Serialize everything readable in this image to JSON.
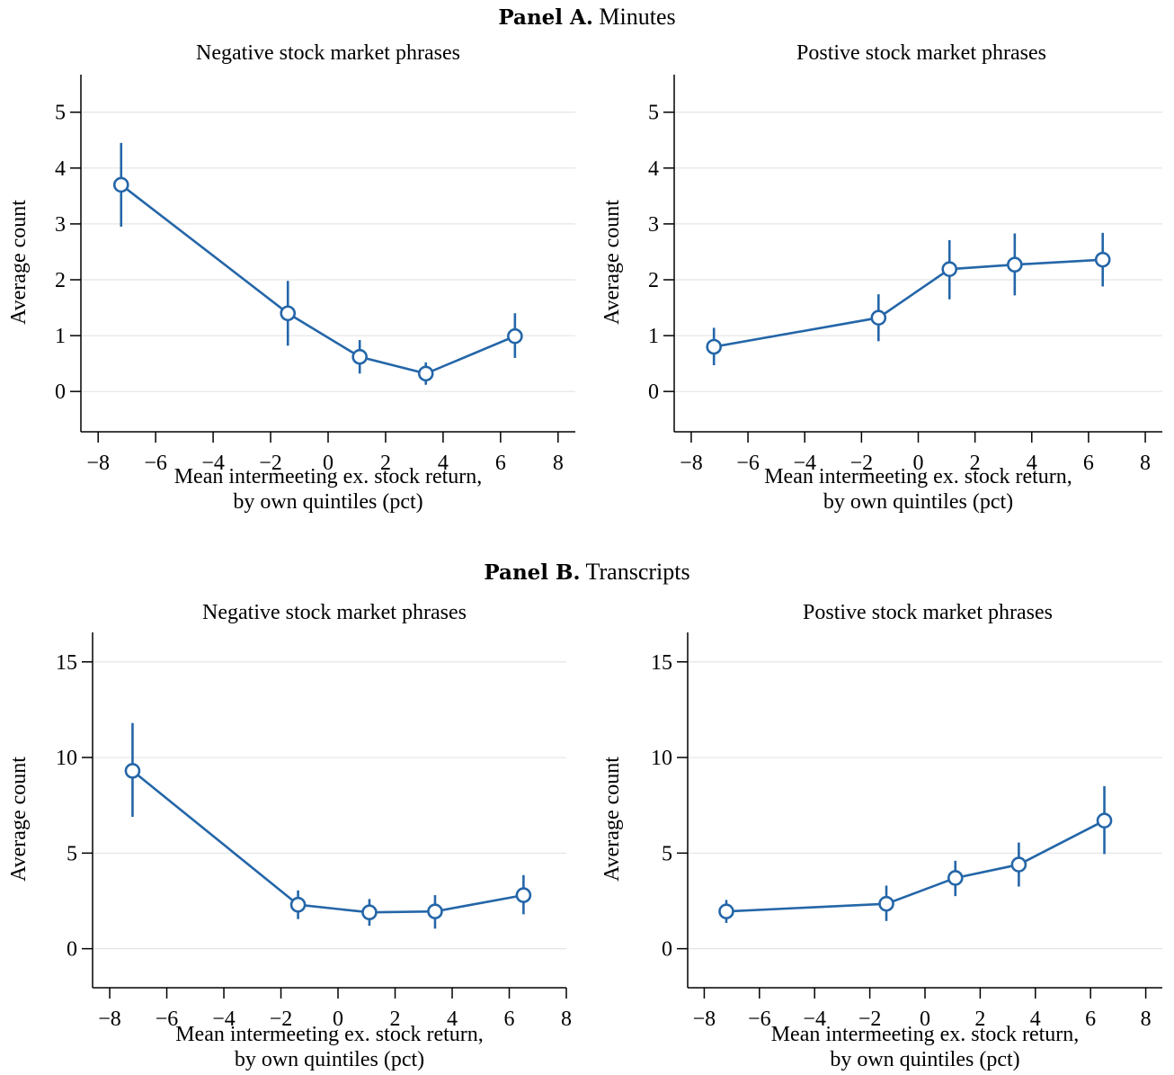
{
  "panels": [
    {
      "label": "Panel A.",
      "name": "Minutes"
    },
    {
      "label": "Panel B.",
      "name": "Transcripts"
    }
  ],
  "colors": {
    "series": "#2466a8",
    "grid": "#e4e4e4",
    "axis": "#000000"
  },
  "chart_data": [
    {
      "type": "line",
      "panel": "Minutes",
      "title": "Negative stock market phrases",
      "xlabel": [
        "Mean intermeeting ex. stock return,",
        "by own quintiles (pct)"
      ],
      "ylabel": "Average count",
      "xlim": [
        -8.6,
        8.6
      ],
      "ylim": [
        -0.4,
        5.35
      ],
      "xticks": [
        -8,
        -6,
        -4,
        -2,
        0,
        2,
        4,
        6,
        8
      ],
      "xtick_labels": [
        "−8",
        "−6",
        "−4",
        "−2",
        "0",
        "2",
        "4",
        "6",
        "8"
      ],
      "yticks": [
        0,
        1,
        2,
        3,
        4,
        5
      ],
      "ytick_labels": [
        "0",
        "1",
        "2",
        "3",
        "4",
        "5"
      ],
      "grid": true,
      "x": [
        -7.2,
        -1.4,
        1.1,
        3.4,
        6.5
      ],
      "y": [
        3.7,
        1.4,
        0.62,
        0.32,
        0.99
      ],
      "ci_low": [
        2.95,
        0.82,
        0.32,
        0.12,
        0.6
      ],
      "ci_high": [
        4.45,
        1.98,
        0.92,
        0.52,
        1.4
      ]
    },
    {
      "type": "line",
      "panel": "Minutes",
      "title": "Postive stock market phrases",
      "xlabel": [
        "Mean intermeeting ex. stock return,",
        "by own quintiles (pct)"
      ],
      "ylabel": "Average count",
      "xlim": [
        -8.6,
        8.6
      ],
      "ylim": [
        -0.4,
        5.35
      ],
      "xticks": [
        -8,
        -6,
        -4,
        -2,
        0,
        2,
        4,
        6,
        8
      ],
      "xtick_labels": [
        "−8",
        "−6",
        "−4",
        "−2",
        "0",
        "2",
        "4",
        "6",
        "8"
      ],
      "yticks": [
        0,
        1,
        2,
        3,
        4,
        5
      ],
      "ytick_labels": [
        "0",
        "1",
        "2",
        "3",
        "4",
        "5"
      ],
      "grid": true,
      "x": [
        -7.2,
        -1.4,
        1.1,
        3.4,
        6.5
      ],
      "y": [
        0.8,
        1.32,
        2.19,
        2.27,
        2.36
      ],
      "ci_low": [
        0.47,
        0.9,
        1.65,
        1.72,
        1.88
      ],
      "ci_high": [
        1.14,
        1.74,
        2.71,
        2.83,
        2.84
      ]
    },
    {
      "type": "line",
      "panel": "Transcripts",
      "title": "Negative stock market phrases",
      "xlabel": [
        "Mean intermeeting ex. stock return,",
        "by own quintiles (pct)"
      ],
      "ylabel": "Average count",
      "xlim": [
        -8.6,
        8.0
      ],
      "ylim": [
        -1.1,
        15.6
      ],
      "xticks": [
        -8,
        -6,
        -4,
        -2,
        0,
        2,
        4,
        6,
        8
      ],
      "xtick_labels": [
        "−8",
        "−6",
        "−4",
        "−2",
        "0",
        "2",
        "4",
        "6",
        "8"
      ],
      "yticks": [
        0,
        5,
        10,
        15
      ],
      "ytick_labels": [
        "0",
        "5",
        "10",
        "15"
      ],
      "grid": true,
      "x": [
        -7.2,
        -1.4,
        1.1,
        3.4,
        6.5
      ],
      "y": [
        9.3,
        2.3,
        1.9,
        1.95,
        2.8
      ],
      "ci_low": [
        6.9,
        1.55,
        1.2,
        1.05,
        1.8
      ],
      "ci_high": [
        11.8,
        3.05,
        2.6,
        2.8,
        3.85
      ]
    },
    {
      "type": "line",
      "panel": "Transcripts",
      "title": "Postive stock market phrases",
      "xlabel": [
        "Mean intermeeting ex. stock return,",
        "by own quintiles (pct)"
      ],
      "ylabel": "Average count",
      "xlim": [
        -8.6,
        8.6
      ],
      "ylim": [
        -1.1,
        15.6
      ],
      "xticks": [
        -8,
        -6,
        -4,
        -2,
        0,
        2,
        4,
        6,
        8
      ],
      "xtick_labels": [
        "−8",
        "−6",
        "−4",
        "−2",
        "0",
        "2",
        "4",
        "6",
        "8"
      ],
      "yticks": [
        0,
        5,
        10,
        15
      ],
      "ytick_labels": [
        "0",
        "5",
        "10",
        "15"
      ],
      "grid": true,
      "x": [
        -7.2,
        -1.4,
        1.1,
        3.4,
        6.5
      ],
      "y": [
        1.95,
        2.35,
        3.7,
        4.4,
        6.7
      ],
      "ci_low": [
        1.35,
        1.45,
        2.75,
        3.25,
        4.95
      ],
      "ci_high": [
        2.55,
        3.3,
        4.6,
        5.55,
        8.5
      ]
    }
  ]
}
